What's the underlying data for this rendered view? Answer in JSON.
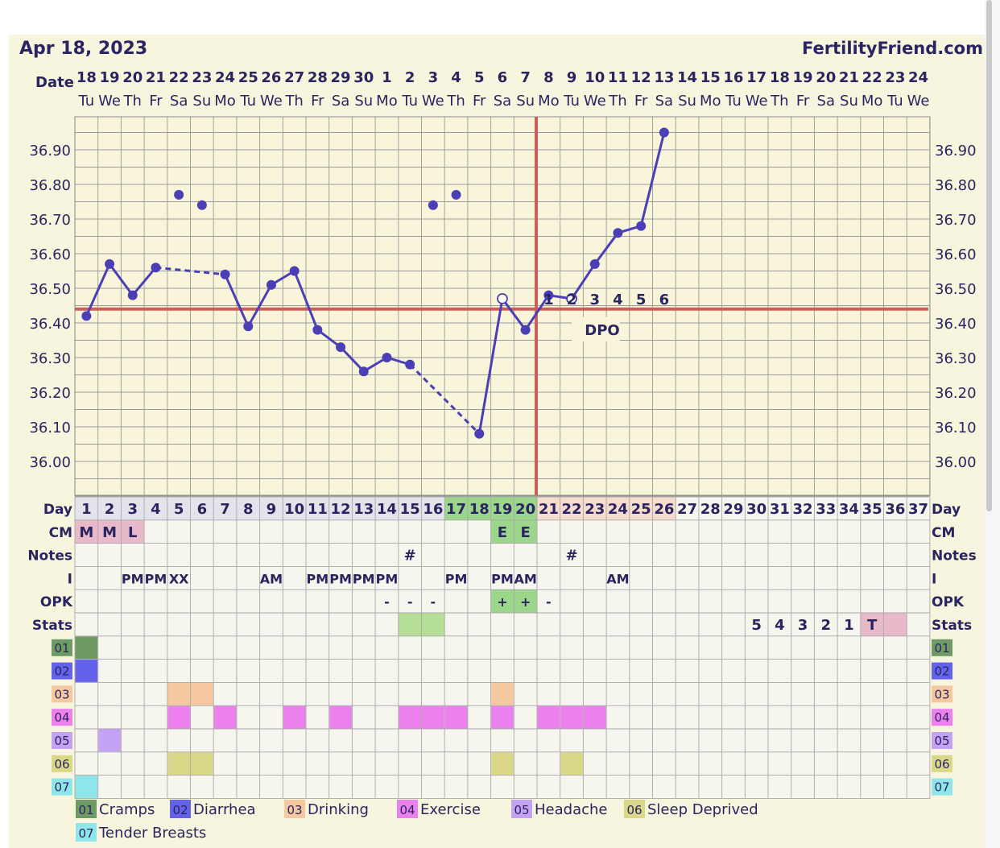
{
  "header": {
    "date": "Apr 18, 2023",
    "site": "FertilityFriend.com"
  },
  "labels": {
    "date": "Date",
    "day": "Day",
    "cm": "CM",
    "notes": "Notes",
    "i": "I",
    "opk": "OPK",
    "stats": "Stats",
    "dpo": "DPO"
  },
  "colors": {
    "accent": "#4b3fb6",
    "coverline": "#c9605a",
    "frame_bg": "#f8f5df",
    "table_bg": "#f6f5ee",
    "day_bg": "#e4e3ec",
    "green_day": "#9bd68a",
    "pink_day": "#f5dccd",
    "stat_green": "#b5df96",
    "stat_pink": "#e8b9c8",
    "cm_pink": "#e8b9c8",
    "cm_green": "#9bd68a",
    "opk_green": "#9bd68a"
  },
  "chart_data": {
    "type": "line",
    "title": "Apr 18, 2023",
    "y_axis": {
      "min": 35.9,
      "max": 37.0,
      "ticks": [
        "36.00",
        "36.10",
        "36.20",
        "36.30",
        "36.40",
        "36.50",
        "36.60",
        "36.70",
        "36.80",
        "36.90"
      ]
    },
    "dates": [
      "18",
      "19",
      "20",
      "21",
      "22",
      "23",
      "24",
      "25",
      "26",
      "27",
      "28",
      "29",
      "30",
      "1",
      "2",
      "3",
      "4",
      "5",
      "6",
      "7",
      "8",
      "9",
      "10",
      "11",
      "12",
      "13",
      "14",
      "15",
      "16",
      "17",
      "18",
      "19",
      "20",
      "21",
      "22",
      "23",
      "24"
    ],
    "weekdays": [
      "Tu",
      "We",
      "Th",
      "Fr",
      "Sa",
      "Su",
      "Mo",
      "Tu",
      "We",
      "Th",
      "Fr",
      "Sa",
      "Su",
      "Mo",
      "Tu",
      "We",
      "Th",
      "Fr",
      "Sa",
      "Su",
      "Mo",
      "Tu",
      "We",
      "Th",
      "Fr",
      "Sa",
      "Su",
      "Mo",
      "Tu",
      "We",
      "Th",
      "Fr",
      "Sa",
      "Su",
      "Mo",
      "Tu",
      "We"
    ],
    "days": [
      "1",
      "2",
      "3",
      "4",
      "5",
      "6",
      "7",
      "8",
      "9",
      "10",
      "11",
      "12",
      "13",
      "14",
      "15",
      "16",
      "17",
      "18",
      "19",
      "20",
      "21",
      "22",
      "23",
      "24",
      "25",
      "26",
      "27",
      "28",
      "29",
      "30",
      "31",
      "32",
      "33",
      "34",
      "35",
      "36",
      "37"
    ],
    "temps": [
      36.42,
      36.57,
      36.48,
      36.56,
      36.77,
      36.74,
      36.54,
      36.39,
      36.51,
      36.55,
      36.38,
      36.33,
      36.26,
      36.3,
      36.28,
      36.74,
      36.77,
      36.08,
      36.47,
      36.38,
      36.48,
      36.47,
      36.57,
      36.66,
      36.68,
      36.95
    ],
    "discarded_days": [
      5,
      6,
      16,
      17
    ],
    "open_days": [
      19,
      22
    ],
    "dashed_segments": [
      [
        4,
        7
      ],
      [
        15,
        18
      ]
    ],
    "coverline": 36.44,
    "ovulation_day": 20,
    "dpo_labels": [
      "1",
      "2",
      "3",
      "4",
      "5",
      "6"
    ],
    "dpo_start_day": 21,
    "day_highlight": {
      "green": [
        17,
        18,
        19,
        20
      ],
      "pink": [
        21,
        22,
        23,
        24,
        25,
        26
      ]
    },
    "cm": [
      {
        "day": 1,
        "text": "M",
        "color": "pink"
      },
      {
        "day": 2,
        "text": "M",
        "color": "pink"
      },
      {
        "day": 3,
        "text": "L",
        "color": "pink"
      },
      {
        "day": 19,
        "text": "E",
        "color": "green"
      },
      {
        "day": 20,
        "text": "E",
        "color": "green"
      }
    ],
    "notes": [
      {
        "day": 15,
        "text": "#"
      },
      {
        "day": 22,
        "text": "#"
      }
    ],
    "intercourse": [
      {
        "day": 3,
        "text": "PM"
      },
      {
        "day": 4,
        "text": "PM"
      },
      {
        "day": 5,
        "text": "XX"
      },
      {
        "day": 9,
        "text": "AM"
      },
      {
        "day": 11,
        "text": "PM"
      },
      {
        "day": 12,
        "text": "PM"
      },
      {
        "day": 13,
        "text": "PM"
      },
      {
        "day": 14,
        "text": "PM"
      },
      {
        "day": 17,
        "text": "PM"
      },
      {
        "day": 19,
        "text": "PM"
      },
      {
        "day": 20,
        "text": "AM"
      },
      {
        "day": 24,
        "text": "AM"
      }
    ],
    "opk": [
      {
        "day": 14,
        "text": "-"
      },
      {
        "day": 15,
        "text": "-"
      },
      {
        "day": 16,
        "text": "-"
      },
      {
        "day": 19,
        "text": "+",
        "color": "green"
      },
      {
        "day": 20,
        "text": "+",
        "color": "green"
      },
      {
        "day": 21,
        "text": "-"
      }
    ],
    "stats": [
      {
        "day": 15,
        "text": "",
        "color": "green"
      },
      {
        "day": 16,
        "text": "",
        "color": "green"
      },
      {
        "day": 30,
        "text": "5"
      },
      {
        "day": 31,
        "text": "4"
      },
      {
        "day": 32,
        "text": "3"
      },
      {
        "day": 33,
        "text": "2"
      },
      {
        "day": 34,
        "text": "1"
      },
      {
        "day": 35,
        "text": "T",
        "color": "pink"
      },
      {
        "day": 36,
        "text": "",
        "color": "pink"
      }
    ],
    "symptoms": [
      {
        "code": "01",
        "name": "Cramps",
        "color": "#6e9b64",
        "days": [
          1
        ]
      },
      {
        "code": "02",
        "name": "Diarrhea",
        "color": "#6262ec",
        "days": [
          1
        ]
      },
      {
        "code": "03",
        "name": "Drinking",
        "color": "#f5c8a0",
        "days": [
          5,
          6,
          19
        ]
      },
      {
        "code": "04",
        "name": "Exercise",
        "color": "#ec80ec",
        "days": [
          5,
          7,
          10,
          12,
          15,
          16,
          17,
          19,
          21,
          22,
          23
        ]
      },
      {
        "code": "05",
        "name": "Headache",
        "color": "#c4a2f4",
        "days": [
          2
        ]
      },
      {
        "code": "06",
        "name": "Sleep Deprived",
        "color": "#d9d889",
        "days": [
          5,
          6,
          19,
          22
        ]
      },
      {
        "code": "07",
        "name": "Tender Breasts",
        "color": "#8ee6ea",
        "days": [
          1
        ]
      }
    ]
  }
}
